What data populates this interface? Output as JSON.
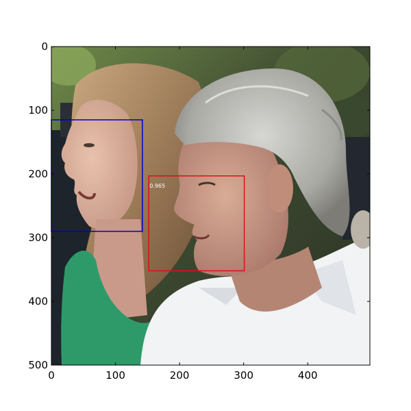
{
  "chart_data": {
    "type": "image-with-detections",
    "xlim": [
      0,
      497
    ],
    "ylim": [
      500,
      0
    ],
    "x_ticks": [
      0,
      100,
      200,
      300,
      400
    ],
    "y_ticks": [
      0,
      100,
      200,
      300,
      400,
      500
    ],
    "grid": false,
    "boxes": [
      {
        "name": "",
        "color": "#0000cc",
        "x0": 0,
        "y0": 115,
        "x1": 142,
        "y1": 290,
        "label": ""
      },
      {
        "name": "",
        "color": "#dd1111",
        "x0": 152,
        "y0": 203,
        "x1": 301,
        "y1": 352,
        "label": "0.965"
      }
    ]
  }
}
